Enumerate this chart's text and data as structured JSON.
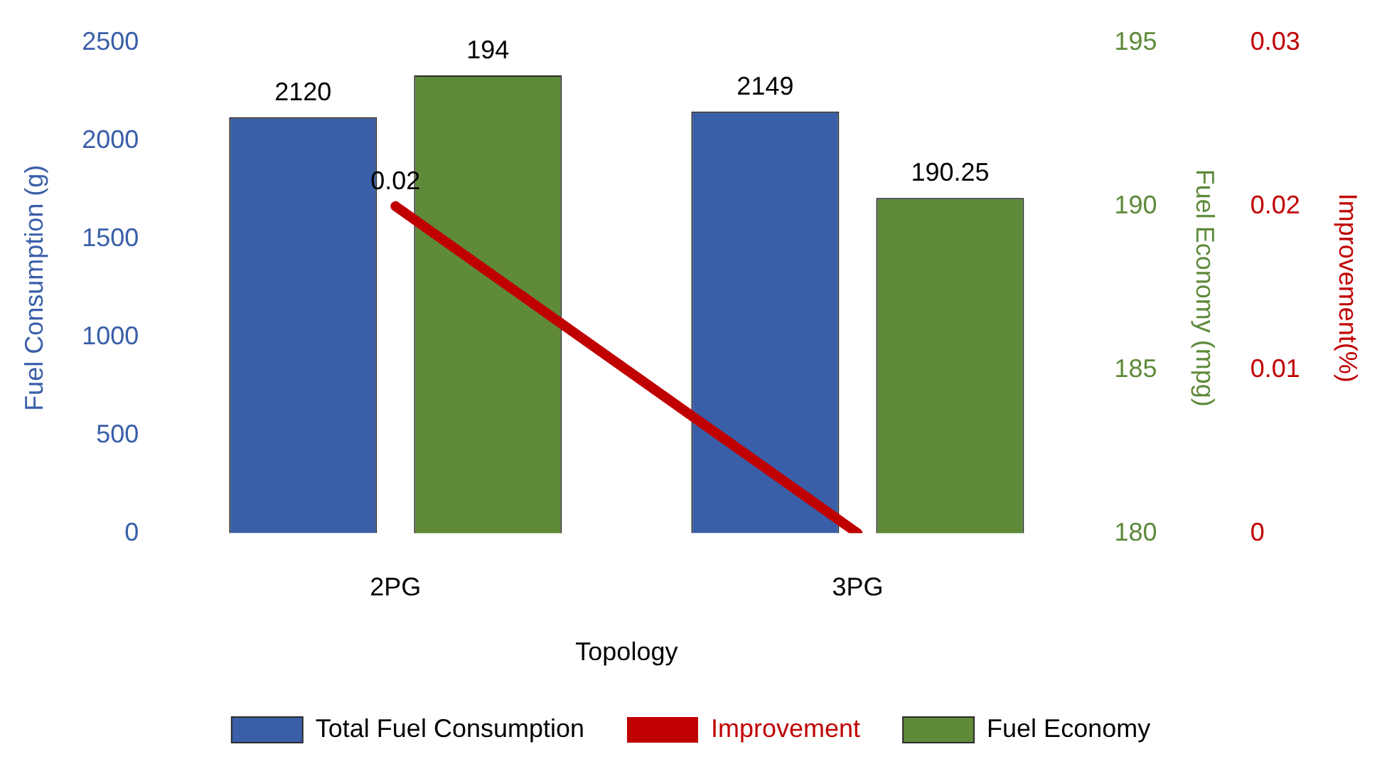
{
  "chart_data": {
    "type": "bar",
    "categories": [
      "2PG",
      "3PG"
    ],
    "xlabel": "Topology",
    "ylabel": "Fuel Consumption (g)",
    "y2label": "Fuel Economy (mpg)",
    "y3label": "Improvement(%)",
    "ylim": [
      0,
      2500
    ],
    "yticks": [
      0,
      500,
      1000,
      1500,
      2000,
      2500
    ],
    "y2lim": [
      180,
      195
    ],
    "y2ticks": [
      180,
      185,
      190,
      195
    ],
    "y3lim": [
      0,
      0.03
    ],
    "y3ticks": [
      0,
      0.01,
      0.02,
      0.03
    ],
    "series": [
      {
        "name": "Total Fuel Consumption",
        "color": "#3a5fa8",
        "values": [
          2120,
          2149
        ],
        "value_labels": [
          "2120",
          "2149"
        ]
      },
      {
        "name": "Improvement",
        "type": "line",
        "axis": "y3",
        "color": "#c00000",
        "values": [
          0.02,
          0
        ],
        "value_labels": [
          "0.02",
          null
        ]
      },
      {
        "name": "Fuel Economy",
        "axis": "y2",
        "color": "#5e8a3a",
        "values": [
          194,
          190.25
        ],
        "value_labels": [
          "194",
          "190.25"
        ]
      }
    ],
    "grid": false,
    "legend": "bottom",
    "marker": "none",
    "line_style": "solid"
  }
}
